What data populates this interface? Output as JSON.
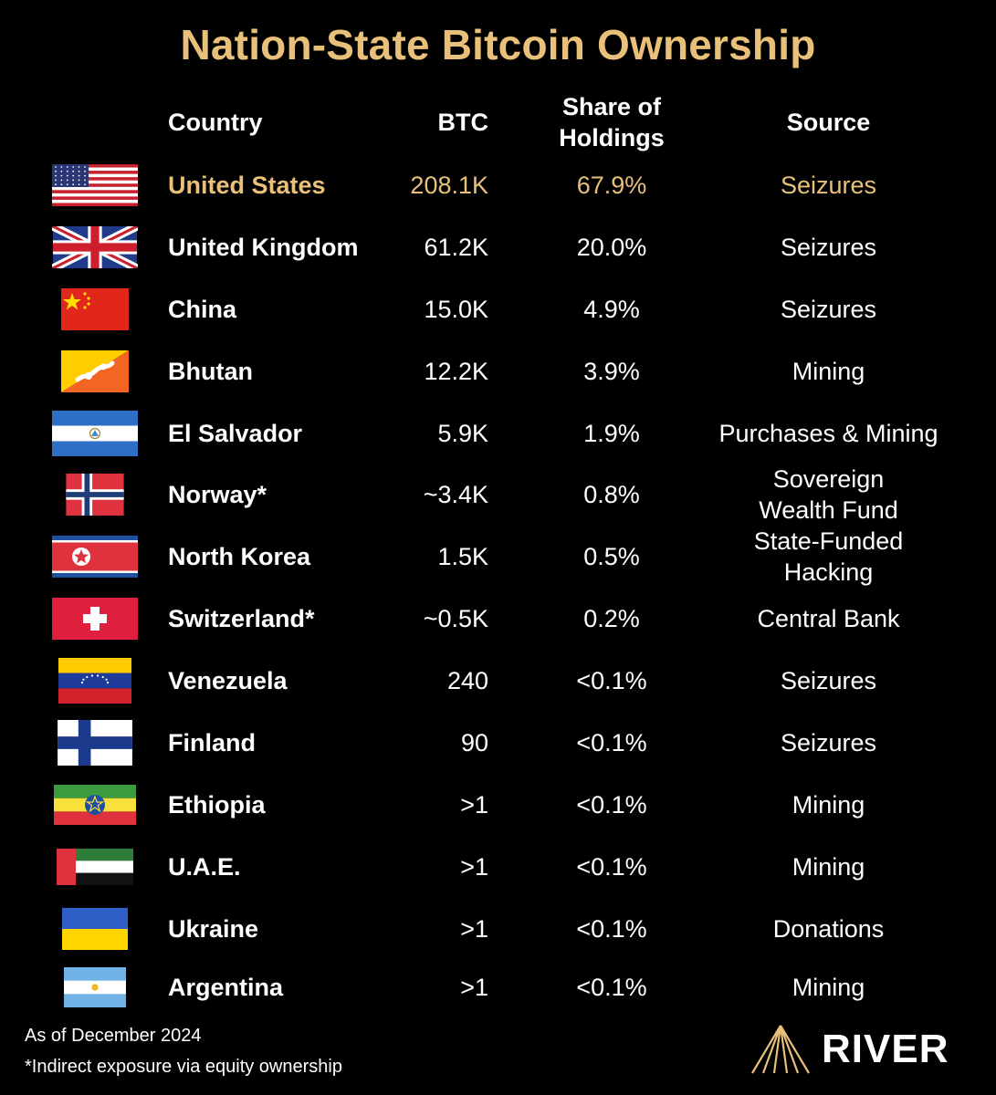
{
  "title": "Nation-State Bitcoin Ownership",
  "headers": {
    "country": "Country",
    "btc": "BTC",
    "share": "Share of Holdings",
    "source": "Source"
  },
  "accent_color": "#e8c07a",
  "chart_data": {
    "type": "table",
    "columns": [
      "Country",
      "BTC",
      "Share of Holdings",
      "Source"
    ],
    "rows": [
      {
        "flag": "us-flag",
        "country": "United States",
        "btc": "208.1K",
        "share": "67.9%",
        "source": "Seizures",
        "highlight": true
      },
      {
        "flag": "uk-flag",
        "country": "United Kingdom",
        "btc": "61.2K",
        "share": "20.0%",
        "source": "Seizures"
      },
      {
        "flag": "china-flag",
        "country": "China",
        "btc": "15.0K",
        "share": "4.9%",
        "source": "Seizures"
      },
      {
        "flag": "bhutan-flag",
        "country": "Bhutan",
        "btc": "12.2K",
        "share": "3.9%",
        "source": "Mining"
      },
      {
        "flag": "el-salvador-flag",
        "country": "El Salvador",
        "btc": "5.9K",
        "share": "1.9%",
        "source": "Purchases & Mining"
      },
      {
        "flag": "norway-flag",
        "country": "Norway*",
        "btc": "~3.4K",
        "share": "0.8%",
        "source": "Sovereign Wealth Fund"
      },
      {
        "flag": "north-korea-flag",
        "country": "North Korea",
        "btc": "1.5K",
        "share": "0.5%",
        "source": "State-Funded Hacking"
      },
      {
        "flag": "switzerland-flag",
        "country": "Switzerland*",
        "btc": "~0.5K",
        "share": "0.2%",
        "source": "Central Bank"
      },
      {
        "flag": "venezuela-flag",
        "country": "Venezuela",
        "btc": "240",
        "share": "<0.1%",
        "source": "Seizures"
      },
      {
        "flag": "finland-flag",
        "country": "Finland",
        "btc": "90",
        "share": "<0.1%",
        "source": "Seizures"
      },
      {
        "flag": "ethiopia-flag",
        "country": "Ethiopia",
        "btc": ">1",
        "share": "<0.1%",
        "source": "Mining"
      },
      {
        "flag": "uae-flag",
        "country": "U.A.E.",
        "btc": ">1",
        "share": "<0.1%",
        "source": "Mining"
      },
      {
        "flag": "ukraine-flag",
        "country": "Ukraine",
        "btc": ">1",
        "share": "<0.1%",
        "source": "Donations"
      },
      {
        "flag": "argentina-flag",
        "country": "Argentina",
        "btc": ">1",
        "share": "<0.1%",
        "source": "Mining"
      }
    ]
  },
  "footer": {
    "note1": "As of December 2024",
    "note2": "*Indirect exposure via equity ownership"
  },
  "logo": {
    "text": "RIVER",
    "icon": "river-mountain-icon"
  }
}
